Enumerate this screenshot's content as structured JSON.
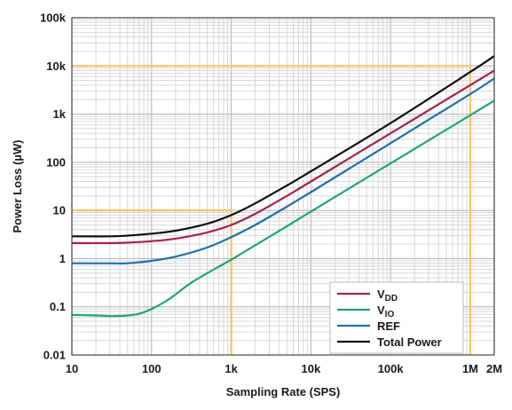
{
  "chart_data": {
    "type": "line",
    "title": "",
    "xlabel": "Sampling Rate (SPS)",
    "ylabel": "Power Loss (µW)",
    "xscale": "log",
    "yscale": "log",
    "xlim": [
      10,
      2000000
    ],
    "ylim": [
      0.01,
      100000
    ],
    "grid": true,
    "legend_position": "bottom-right",
    "xticks": [
      {
        "value": 10,
        "label": "10"
      },
      {
        "value": 100,
        "label": "100"
      },
      {
        "value": 1000,
        "label": "1k"
      },
      {
        "value": 10000,
        "label": "10k"
      },
      {
        "value": 100000,
        "label": "100k"
      },
      {
        "value": 1000000,
        "label": "1M"
      },
      {
        "value": 2000000,
        "label": "2M"
      }
    ],
    "yticks": [
      {
        "value": 0.01,
        "label": "0.01"
      },
      {
        "value": 0.1,
        "label": "0.1"
      },
      {
        "value": 1,
        "label": "1"
      },
      {
        "value": 10,
        "label": "10"
      },
      {
        "value": 100,
        "label": "100"
      },
      {
        "value": 1000,
        "label": "1k"
      },
      {
        "value": 10000,
        "label": "10k"
      },
      {
        "value": 100000,
        "label": "100k"
      }
    ],
    "series": [
      {
        "name": "VDD",
        "label_main": "V",
        "label_sub": "DD",
        "color": "#a3244a",
        "points": [
          [
            10,
            2.1
          ],
          [
            30,
            2.1
          ],
          [
            50,
            2.15
          ],
          [
            100,
            2.3
          ],
          [
            200,
            2.6
          ],
          [
            500,
            3.5
          ],
          [
            1000,
            5.0
          ],
          [
            2000,
            8.5
          ],
          [
            5000,
            20
          ],
          [
            10000,
            40
          ],
          [
            100000,
            400
          ],
          [
            1000000,
            4000
          ],
          [
            2000000,
            8000
          ]
        ]
      },
      {
        "name": "VIO",
        "label_main": "V",
        "label_sub": "IO",
        "color": "#1fa37a",
        "points": [
          [
            10,
            0.068
          ],
          [
            20,
            0.066
          ],
          [
            30,
            0.064
          ],
          [
            50,
            0.066
          ],
          [
            70,
            0.072
          ],
          [
            100,
            0.09
          ],
          [
            150,
            0.13
          ],
          [
            200,
            0.18
          ],
          [
            300,
            0.3
          ],
          [
            500,
            0.5
          ],
          [
            1000,
            0.95
          ],
          [
            2000,
            1.9
          ],
          [
            5000,
            4.7
          ],
          [
            10000,
            9.5
          ],
          [
            100000,
            95
          ],
          [
            1000000,
            950
          ],
          [
            2000000,
            1900
          ]
        ]
      },
      {
        "name": "REF",
        "label_main": "REF",
        "label_sub": "",
        "color": "#1f6fae",
        "points": [
          [
            10,
            0.8
          ],
          [
            30,
            0.8
          ],
          [
            50,
            0.8
          ],
          [
            100,
            0.9
          ],
          [
            200,
            1.1
          ],
          [
            500,
            1.7
          ],
          [
            1000,
            2.8
          ],
          [
            2000,
            5.0
          ],
          [
            5000,
            12
          ],
          [
            10000,
            24
          ],
          [
            100000,
            250
          ],
          [
            1000000,
            2600
          ],
          [
            2000000,
            5500
          ]
        ]
      },
      {
        "name": "Total Power",
        "label_main": "Total Power",
        "label_sub": "",
        "color": "#111111",
        "points": [
          [
            10,
            2.9
          ],
          [
            30,
            2.9
          ],
          [
            50,
            3.0
          ],
          [
            100,
            3.3
          ],
          [
            200,
            3.8
          ],
          [
            500,
            5.3
          ],
          [
            1000,
            8.0
          ],
          [
            2000,
            14
          ],
          [
            5000,
            33
          ],
          [
            10000,
            65
          ],
          [
            100000,
            650
          ],
          [
            1000000,
            7500
          ],
          [
            2000000,
            16000
          ]
        ]
      }
    ],
    "reference_lines": [
      {
        "color": "#f2c36b",
        "path": [
          [
            10,
            10
          ],
          [
            1000,
            10
          ],
          [
            1000,
            0.01
          ]
        ]
      },
      {
        "color": "#f2c36b",
        "path": [
          [
            10,
            10000
          ],
          [
            1000000,
            10000
          ],
          [
            1000000,
            0.01
          ]
        ]
      }
    ]
  }
}
